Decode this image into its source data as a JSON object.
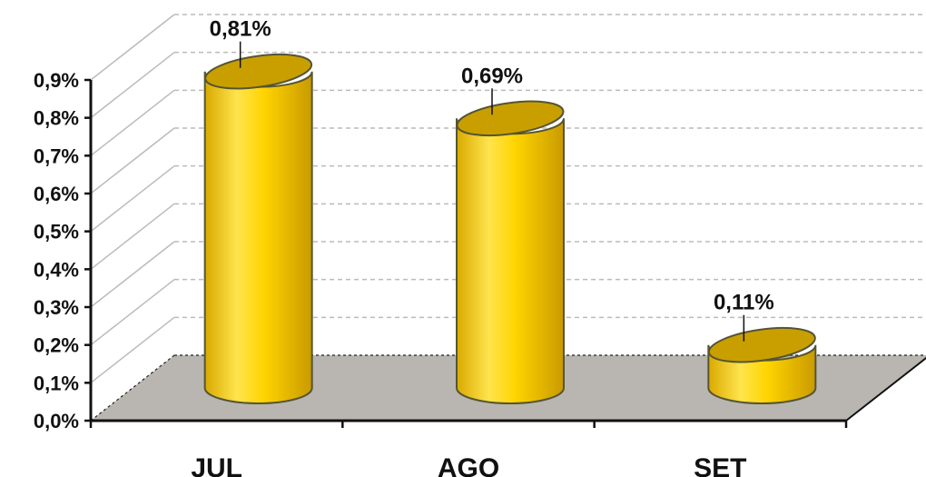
{
  "chart_data": {
    "type": "bar",
    "style": "3d-cylinder",
    "categories": [
      "JUL",
      "AGO",
      "SET"
    ],
    "values": [
      0.81,
      0.69,
      0.11
    ],
    "data_labels": [
      "0,81%",
      "0,69%",
      "0,11%"
    ],
    "y_ticks": [
      "0,0%",
      "0,1%",
      "0,2%",
      "0,3%",
      "0,4%",
      "0,5%",
      "0,6%",
      "0,7%",
      "0,8%",
      "0,9%"
    ],
    "ylim": [
      0,
      0.9
    ],
    "grid": true,
    "legend": "none",
    "colors": {
      "bar_body": "#f2c200",
      "bar_light": "#ffe24a",
      "bar_top": "#c99f00",
      "bar_outline": "#555533",
      "floor": "#b9b5b0",
      "gridline": "#bbbbbb"
    }
  }
}
